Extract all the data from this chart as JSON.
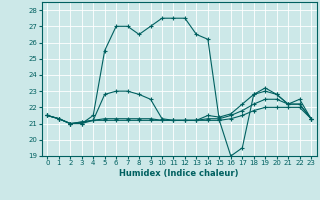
{
  "xlabel": "Humidex (Indice chaleur)",
  "xlim": [
    -0.5,
    23.5
  ],
  "ylim": [
    19,
    28.5
  ],
  "yticks": [
    19,
    20,
    21,
    22,
    23,
    24,
    25,
    26,
    27,
    28
  ],
  "xticks": [
    0,
    1,
    2,
    3,
    4,
    5,
    6,
    7,
    8,
    9,
    10,
    11,
    12,
    13,
    14,
    15,
    16,
    17,
    18,
    19,
    20,
    21,
    22,
    23
  ],
  "background_color": "#cce8e8",
  "grid_color": "#b0d0d0",
  "line_color": "#006060",
  "series": [
    [
      21.5,
      21.3,
      21.0,
      21.0,
      21.5,
      25.5,
      27.0,
      27.0,
      26.5,
      27.0,
      27.5,
      27.5,
      27.5,
      26.5,
      26.2,
      21.2,
      19.0,
      19.5,
      22.8,
      23.2,
      22.8,
      22.2,
      22.5,
      21.3
    ],
    [
      21.5,
      21.3,
      21.0,
      21.1,
      21.2,
      22.8,
      23.0,
      23.0,
      22.8,
      22.5,
      21.3,
      21.2,
      21.2,
      21.2,
      21.5,
      21.4,
      21.6,
      22.2,
      22.8,
      23.0,
      22.8,
      22.2,
      22.2,
      21.3
    ],
    [
      21.5,
      21.3,
      21.0,
      21.1,
      21.2,
      21.3,
      21.3,
      21.3,
      21.3,
      21.3,
      21.2,
      21.2,
      21.2,
      21.2,
      21.3,
      21.3,
      21.5,
      21.8,
      22.2,
      22.5,
      22.5,
      22.2,
      22.2,
      21.3
    ],
    [
      21.5,
      21.3,
      21.0,
      21.0,
      21.2,
      21.2,
      21.2,
      21.2,
      21.2,
      21.2,
      21.2,
      21.2,
      21.2,
      21.2,
      21.2,
      21.2,
      21.3,
      21.5,
      21.8,
      22.0,
      22.0,
      22.0,
      22.0,
      21.3
    ]
  ]
}
